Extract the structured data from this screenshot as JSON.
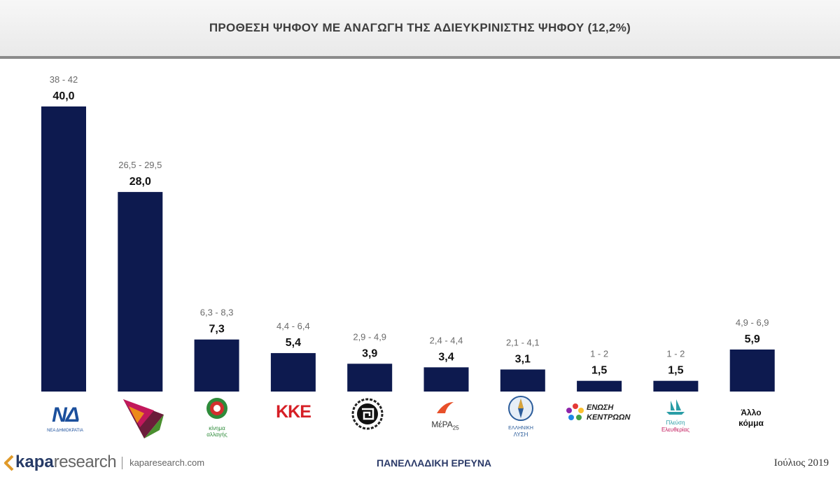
{
  "header": {
    "title": "ΠΡΟΘΕΣΗ ΨΗΦΟΥ ΜΕ ΑΝΑΓΩΓΗ ΤΗΣ ΑΔΙΕΥΚΡΙΝΙΣΤΗΣ ΨΗΦΟΥ (12,2%)"
  },
  "chart_data": {
    "type": "bar",
    "categories": [
      "ΝΔ",
      "ΣΥΡΙΖΑ",
      "ΚΙΝΑΛ",
      "ΚΚΕ",
      "Χρυσή Αυγή",
      "ΜέΡΑ25",
      "Ελληνική Λύση",
      "Ένωση Κεντρώων",
      "Πλεύση Ελευθερίας",
      "Άλλο κόμμα"
    ],
    "values": [
      40.0,
      28.0,
      7.3,
      5.4,
      3.9,
      3.4,
      3.1,
      1.5,
      1.5,
      5.9
    ],
    "value_labels": [
      "40,0",
      "28,0",
      "7,3",
      "5,4",
      "3,9",
      "3,4",
      "3,1",
      "1,5",
      "1,5",
      "5,9"
    ],
    "range_labels": [
      "38 - 42",
      "26,5 - 29,5",
      "6,3 - 8,3",
      "4,4 - 6,4",
      "2,9 - 4,9",
      "2,4 - 4,4",
      "2,1 - 4,1",
      "1 - 2",
      "1 - 2",
      "4,9 - 6,9"
    ],
    "ylim": [
      0,
      40
    ],
    "bar_color": "#0d1a4f",
    "grid": false
  },
  "logos": {
    "nd": {
      "main": "ΝΔ",
      "sub": "ΝΕΑ ΔΗΜΟΚΡΑΤΙΑ",
      "icon": "nd-logo-icon"
    },
    "syriza": {
      "icon": "syriza-logo-icon"
    },
    "kinal": {
      "line1": "κίνημα",
      "line2": "αλλαγής",
      "icon": "kinal-logo-icon"
    },
    "kke": {
      "text": "ΚΚΕ",
      "icon": "kke-logo-icon"
    },
    "xa": {
      "icon": "golden-dawn-logo-icon"
    },
    "mera25": {
      "text": "ΜέΡΑ",
      "sub": "25",
      "icon": "mera25-logo-icon"
    },
    "ellisi": {
      "line1": "ΕΛΛΗΝΙΚΗ",
      "line2": "ΛΥΣΗ",
      "icon": "compass-logo-icon"
    },
    "enosi": {
      "line1": "ΕΝΩΣΗ",
      "line2": "ΚΕΝΤΡΩΩΝ",
      "icon": "star-logo-icon"
    },
    "plefsi": {
      "line1": "Πλεύση",
      "line2": "Ελευθερίας",
      "icon": "ship-logo-icon"
    },
    "other": {
      "line1": "Άλλο",
      "line2": "κόμμα"
    }
  },
  "footer": {
    "brand_prefix": "kapa",
    "brand_suffix": "research",
    "url": "kaparesearch.com",
    "survey": "ΠΑΝΕΛΛΑΔΙΚΗ ΕΡΕΥΝΑ",
    "date": "Ιούλιος 2019"
  }
}
